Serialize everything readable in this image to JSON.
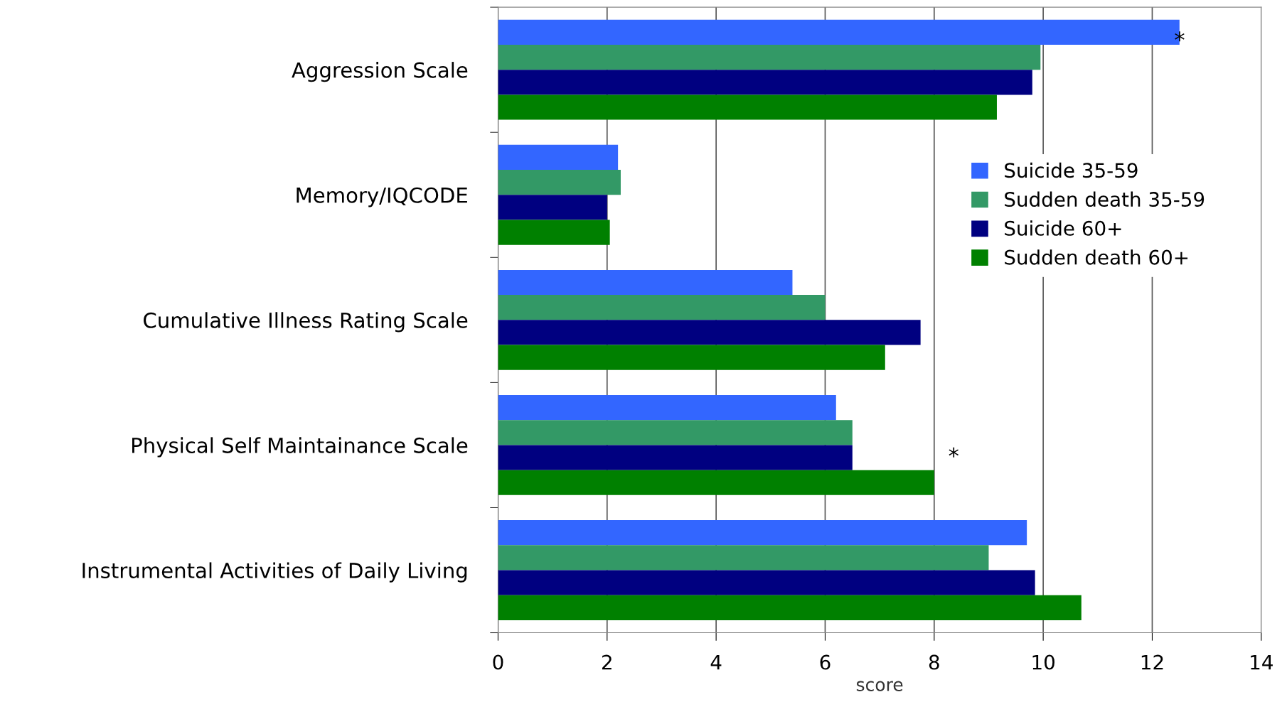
{
  "chart_data": {
    "type": "bar",
    "orientation": "horizontal",
    "xlabel": "score",
    "categories": [
      "Aggression Scale",
      "Memory/IQCODE",
      "Cumulative Illness Rating Scale",
      "Physical Self Maintainance Scale",
      "Instrumental Activities of Daily Living"
    ],
    "series": [
      {
        "name": "Suicide 35-59",
        "color": "#3366ff",
        "values": [
          12.5,
          2.2,
          5.4,
          6.2,
          9.7
        ]
      },
      {
        "name": "Sudden death 35-59",
        "color": "#339966",
        "values": [
          9.95,
          2.25,
          6.0,
          6.5,
          9.0
        ]
      },
      {
        "name": "Suicide 60+",
        "color": "#000080",
        "values": [
          9.8,
          2.0,
          7.75,
          6.5,
          9.85
        ]
      },
      {
        "name": "Sudden death 60+",
        "color": "#008000",
        "values": [
          9.15,
          2.05,
          7.1,
          8.0,
          10.7
        ]
      }
    ],
    "xlim": [
      0,
      14
    ],
    "xticks": [
      0,
      2,
      4,
      6,
      8,
      10,
      12,
      14
    ],
    "grid": "x",
    "legend": "right",
    "annotations": [
      "*",
      "*"
    ]
  }
}
